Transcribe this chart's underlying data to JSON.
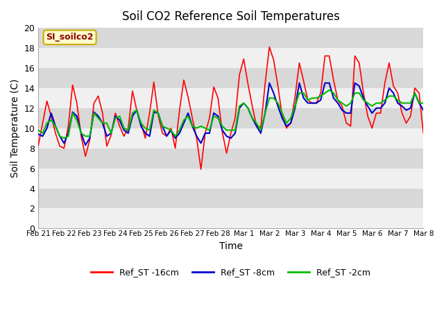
{
  "title": "Soil CO2 Reference Soil Temperatures",
  "xlabel": "Time",
  "ylabel": "Soil Temperature (C)",
  "legend_label": "SI_soilco2",
  "series_labels": [
    "Ref_ST -16cm",
    "Ref_ST -8cm",
    "Ref_ST -2cm"
  ],
  "series_colors": [
    "#ff0000",
    "#0000cc",
    "#00bb00"
  ],
  "ylim": [
    0,
    20
  ],
  "yticks": [
    0,
    2,
    4,
    6,
    8,
    10,
    12,
    14,
    16,
    18,
    20
  ],
  "bg_color": "#d8d8d8",
  "plot_bg": "#e8e8e8",
  "band_color_light": "#f0f0f0",
  "band_color_dark": "#d8d8d8",
  "x_labels": [
    "Feb 21",
    "Feb 22",
    "Feb 23",
    "Feb 24",
    "Feb 25",
    "Feb 26",
    "Feb 27",
    "Feb 28",
    "Mar 1",
    "Mar 2",
    "Mar 3",
    "Mar 4",
    "Mar 5",
    "Mar 6",
    "Mar 7",
    "Mar 8"
  ],
  "ref_st_16cm": [
    8.3,
    10.5,
    12.7,
    11.2,
    9.5,
    8.2,
    8.0,
    10.2,
    14.3,
    12.5,
    9.2,
    7.2,
    8.8,
    12.5,
    13.2,
    11.5,
    8.2,
    9.3,
    11.5,
    10.2,
    9.2,
    10.0,
    13.7,
    11.8,
    10.5,
    9.0,
    11.5,
    14.6,
    11.3,
    9.5,
    9.2,
    10.0,
    8.0,
    11.8,
    14.8,
    13.1,
    11.0,
    9.0,
    5.9,
    9.5,
    11.0,
    14.1,
    13.0,
    9.6,
    7.5,
    9.5,
    11.0,
    15.3,
    16.9,
    14.4,
    12.2,
    10.2,
    10.1,
    14.4,
    18.1,
    16.8,
    14.2,
    11.2,
    10.0,
    10.5,
    13.1,
    16.5,
    14.7,
    12.8,
    12.5,
    12.5,
    13.5,
    17.2,
    17.2,
    14.8,
    12.8,
    12.2,
    10.5,
    10.2,
    17.2,
    16.5,
    13.5,
    11.2,
    10.0,
    11.5,
    11.5,
    14.5,
    16.5,
    14.2,
    13.5,
    11.5,
    10.5,
    11.2,
    14.0,
    13.5,
    9.5
  ],
  "ref_st_8cm": [
    9.4,
    9.2,
    10.0,
    11.5,
    10.2,
    9.2,
    8.5,
    9.5,
    11.6,
    11.2,
    9.5,
    8.3,
    9.0,
    11.6,
    11.2,
    10.5,
    9.2,
    9.5,
    11.2,
    10.8,
    9.8,
    9.5,
    11.2,
    11.8,
    10.2,
    9.5,
    9.2,
    11.6,
    11.5,
    10.2,
    9.2,
    9.8,
    9.0,
    9.5,
    10.5,
    11.5,
    10.2,
    9.2,
    8.5,
    9.5,
    9.5,
    11.5,
    11.2,
    9.8,
    9.2,
    9.0,
    9.5,
    12.0,
    12.5,
    12.0,
    11.0,
    10.2,
    9.5,
    11.5,
    14.5,
    13.5,
    12.2,
    11.0,
    10.2,
    10.5,
    12.0,
    14.5,
    13.0,
    12.5,
    12.5,
    12.5,
    12.8,
    14.5,
    14.5,
    13.0,
    12.5,
    11.8,
    11.5,
    11.5,
    14.5,
    14.2,
    13.0,
    12.2,
    11.5,
    12.0,
    12.0,
    12.5,
    14.0,
    13.5,
    12.5,
    12.2,
    11.8,
    12.0,
    13.5,
    12.5,
    11.8
  ],
  "ref_st_2cm": [
    9.8,
    9.5,
    10.5,
    10.8,
    10.2,
    9.2,
    9.0,
    9.2,
    11.5,
    10.8,
    9.5,
    9.2,
    9.2,
    11.5,
    11.0,
    10.5,
    10.5,
    9.5,
    11.0,
    11.2,
    10.0,
    9.8,
    11.5,
    11.8,
    10.5,
    10.0,
    9.8,
    11.8,
    11.5,
    10.2,
    10.0,
    9.8,
    9.2,
    9.8,
    10.8,
    11.2,
    10.2,
    10.0,
    10.2,
    10.0,
    9.8,
    11.2,
    11.0,
    10.2,
    9.8,
    9.8,
    9.8,
    12.2,
    12.5,
    12.0,
    11.0,
    10.5,
    9.8,
    11.5,
    13.0,
    13.0,
    12.5,
    11.5,
    10.5,
    11.0,
    12.2,
    13.5,
    13.5,
    12.8,
    13.0,
    13.0,
    13.2,
    13.5,
    13.8,
    13.5,
    12.8,
    12.5,
    12.2,
    12.5,
    13.5,
    13.5,
    12.8,
    12.5,
    12.2,
    12.5,
    12.5,
    12.8,
    13.2,
    13.2,
    12.8,
    12.5,
    12.5,
    12.5,
    13.5,
    12.5,
    12.5
  ]
}
